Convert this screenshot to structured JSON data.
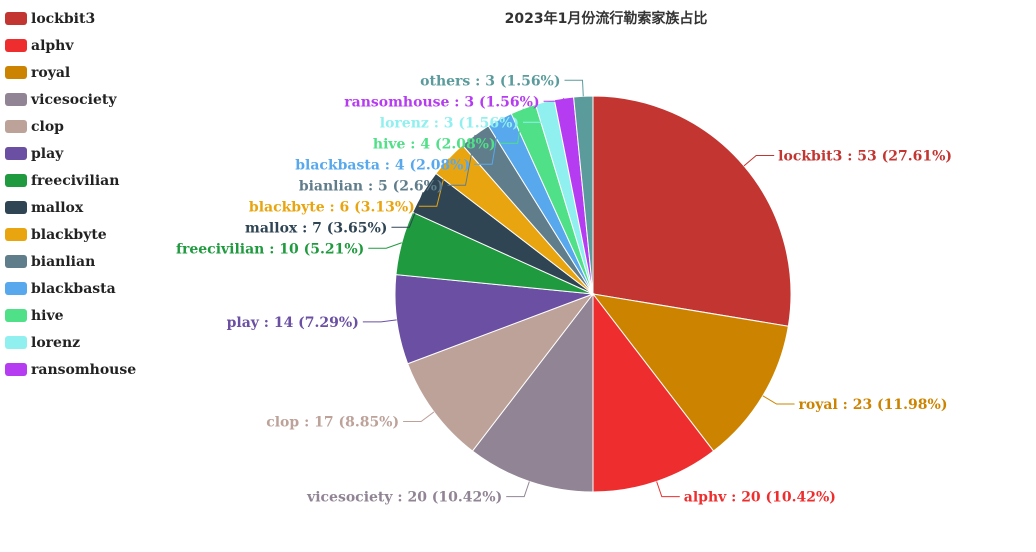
{
  "chart_data": {
    "type": "pie",
    "title": "2023年1月份流行勒索家族占比",
    "slices": [
      {
        "name": "lockbit3",
        "value": 53,
        "percent": "27.61%",
        "color": "#c23531"
      },
      {
        "name": "royal",
        "value": 23,
        "percent": "11.98%",
        "color": "#cc8400"
      },
      {
        "name": "alphv",
        "value": 20,
        "percent": "10.42%",
        "color": "#ee2e2e"
      },
      {
        "name": "vicesociety",
        "value": 20,
        "percent": "10.42%",
        "color": "#918495"
      },
      {
        "name": "clop",
        "value": 17,
        "percent": "8.85%",
        "color": "#bda29a"
      },
      {
        "name": "play",
        "value": 14,
        "percent": "7.29%",
        "color": "#6a4fa3"
      },
      {
        "name": "freecivilian",
        "value": 10,
        "percent": "5.21%",
        "color": "#209a3f"
      },
      {
        "name": "mallox",
        "value": 7,
        "percent": "3.65%",
        "color": "#2f4554"
      },
      {
        "name": "blackbyte",
        "value": 6,
        "percent": "3.13%",
        "color": "#e9a50f"
      },
      {
        "name": "bianlian",
        "value": 5,
        "percent": "2.6%",
        "color": "#607d8b"
      },
      {
        "name": "blackbasta",
        "value": 4,
        "percent": "2.08%",
        "color": "#57a8ec"
      },
      {
        "name": "hive",
        "value": 4,
        "percent": "2.08%",
        "color": "#4fe088"
      },
      {
        "name": "lorenz",
        "value": 3,
        "percent": "1.56%",
        "color": "#8ff0ef"
      },
      {
        "name": "ransomhouse",
        "value": 3,
        "percent": "1.56%",
        "color": "#b53cf0"
      },
      {
        "name": "others",
        "value": 3,
        "percent": "1.56%",
        "color": "#5b9b9c"
      }
    ],
    "legend": {
      "placement": "left",
      "items": [
        {
          "name": "lockbit3",
          "color": "#c23531"
        },
        {
          "name": "alphv",
          "color": "#ee2e2e"
        },
        {
          "name": "royal",
          "color": "#cc8400"
        },
        {
          "name": "vicesociety",
          "color": "#918495"
        },
        {
          "name": "clop",
          "color": "#bda29a"
        },
        {
          "name": "play",
          "color": "#6a4fa3"
        },
        {
          "name": "freecivilian",
          "color": "#209a3f"
        },
        {
          "name": "mallox",
          "color": "#2f4554"
        },
        {
          "name": "blackbyte",
          "color": "#e9a50f"
        },
        {
          "name": "bianlian",
          "color": "#607d8b"
        },
        {
          "name": "blackbasta",
          "color": "#57a8ec"
        },
        {
          "name": "hive",
          "color": "#4fe088"
        },
        {
          "name": "lorenz",
          "color": "#8ff0ef"
        },
        {
          "name": "ransomhouse",
          "color": "#b53cf0"
        }
      ]
    }
  }
}
